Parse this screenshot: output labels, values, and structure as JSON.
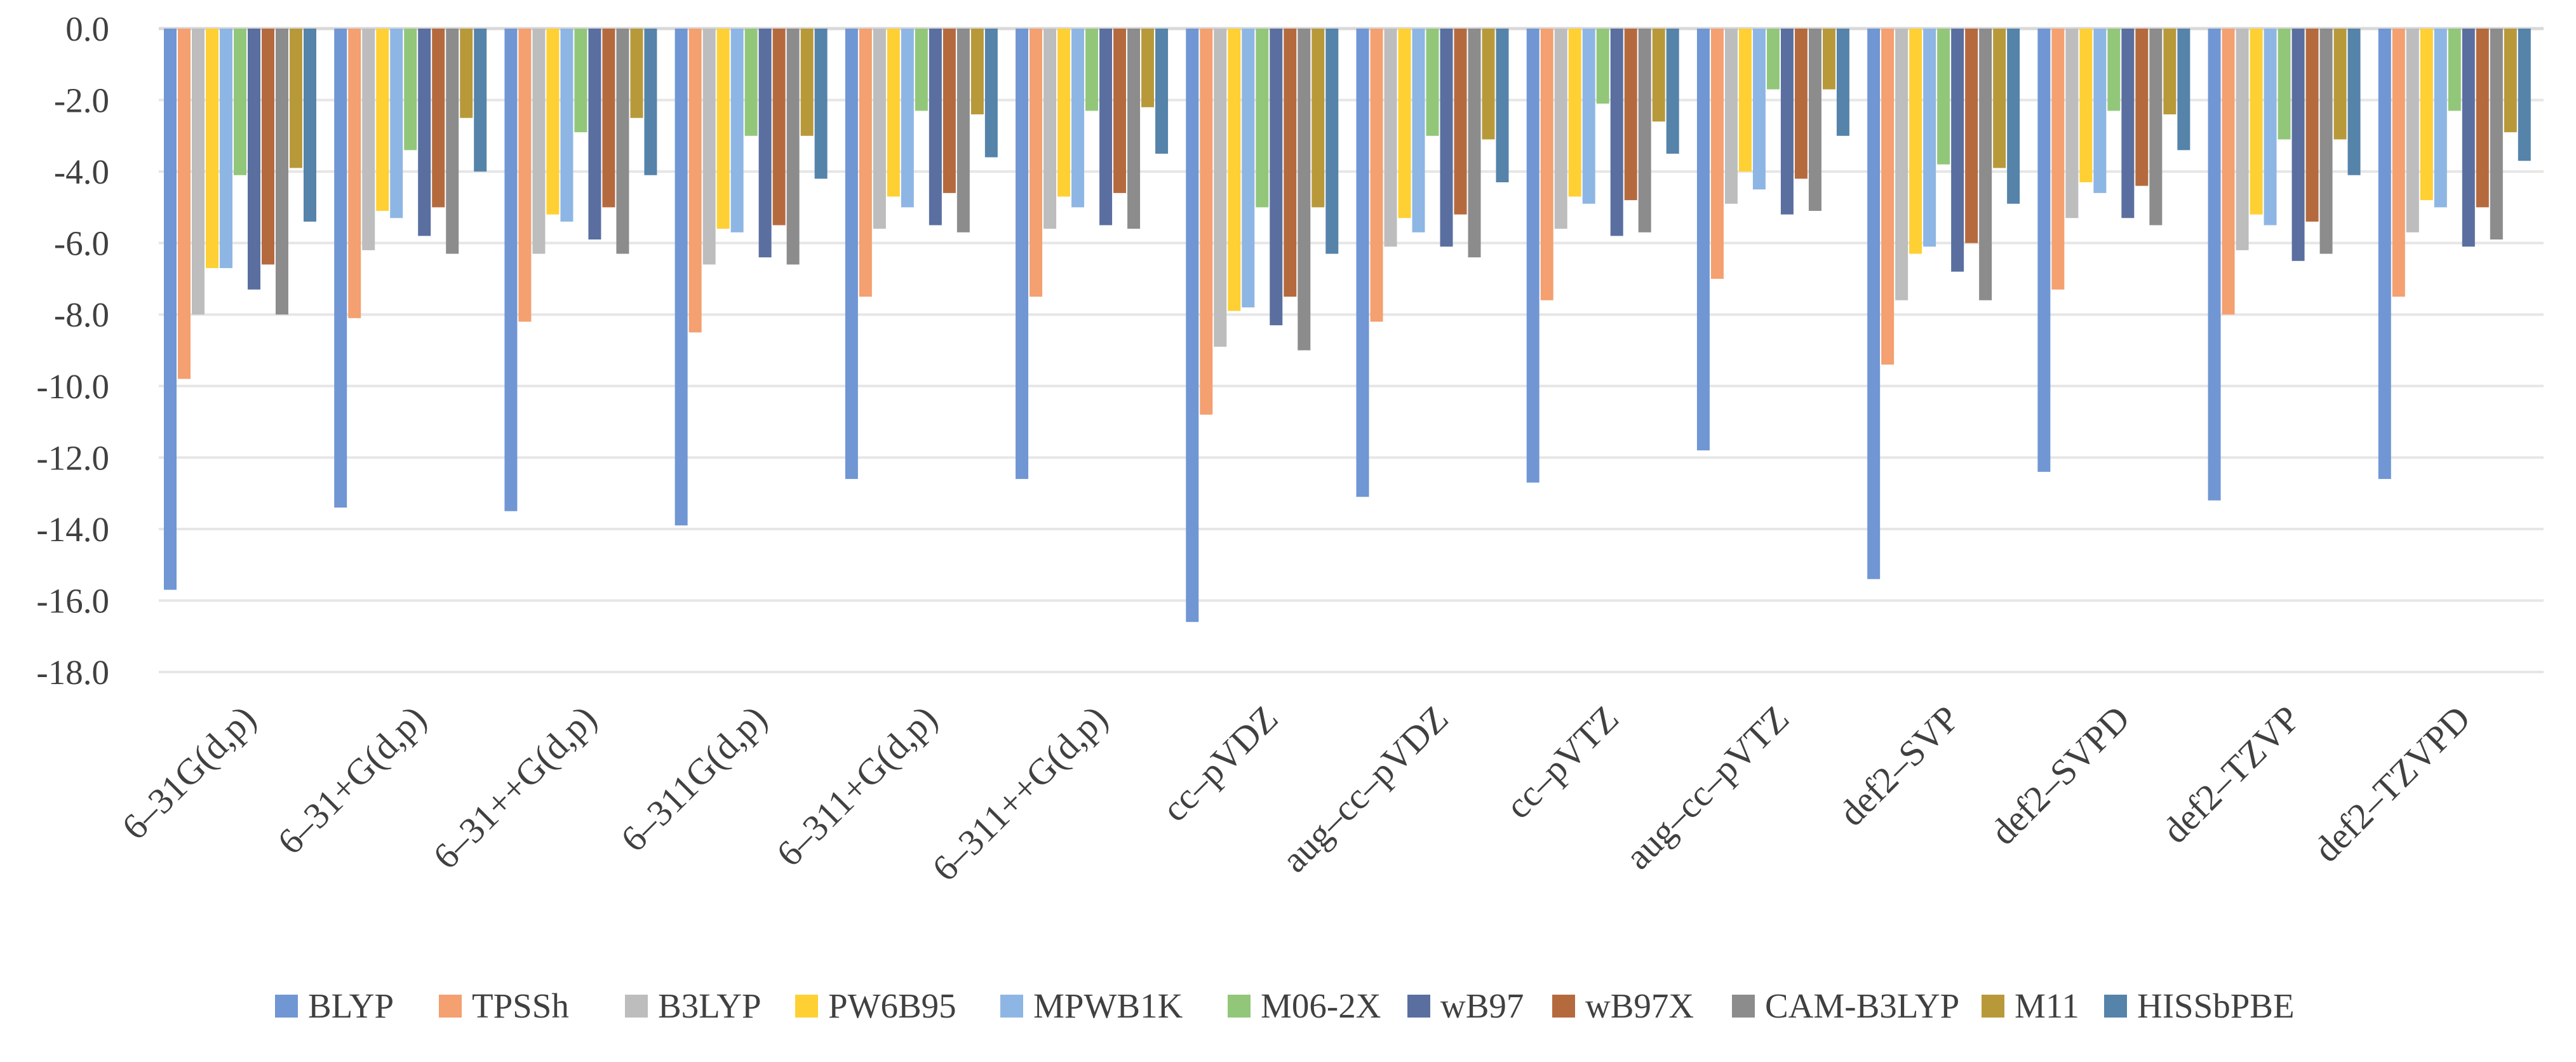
{
  "chart_data": {
    "type": "bar",
    "title": "",
    "xlabel": "",
    "ylabel": "",
    "ylim": [
      -18,
      0
    ],
    "yticks": [
      "0.0",
      "-2.0",
      "-4.0",
      "-6.0",
      "-8.0",
      "-10.0",
      "-12.0",
      "-14.0",
      "-16.0",
      "-18.0"
    ],
    "grid": true,
    "legend_position": "bottom",
    "categories": [
      "6–31G(d,p)",
      "6–31+G(d,p)",
      "6–31++G(d,p)",
      "6–311G(d,p)",
      "6–311+G(d,p)",
      "6–311++G(d,p)",
      "cc–pVDZ",
      "aug–cc–pVDZ",
      "cc–pVTZ",
      "aug–cc–pVTZ",
      "def2–SVP",
      "def2–SVPD",
      "def2–TZVP",
      "def2–TZVPD"
    ],
    "series": [
      {
        "name": "BLYP",
        "color": "#7096D4",
        "values": [
          -15.7,
          -13.4,
          -13.5,
          -13.9,
          -12.6,
          -12.6,
          -16.6,
          -13.1,
          -12.7,
          -11.8,
          -15.4,
          -12.4,
          -13.2,
          -12.6
        ]
      },
      {
        "name": "TPSSh",
        "color": "#F4A070",
        "values": [
          -9.8,
          -8.1,
          -8.2,
          -8.5,
          -7.5,
          -7.5,
          -10.8,
          -8.2,
          -7.6,
          -7.0,
          -9.4,
          -7.3,
          -8.0,
          -7.5
        ]
      },
      {
        "name": "B3LYP",
        "color": "#BDBDBD",
        "values": [
          -8.0,
          -6.2,
          -6.3,
          -6.6,
          -5.6,
          -5.6,
          -8.9,
          -6.1,
          -5.6,
          -4.9,
          -7.6,
          -5.3,
          -6.2,
          -5.7
        ]
      },
      {
        "name": "PW6B95",
        "color": "#FFD033",
        "values": [
          -6.7,
          -5.1,
          -5.2,
          -5.6,
          -4.7,
          -4.7,
          -7.9,
          -5.3,
          -4.7,
          -4.0,
          -6.3,
          -4.3,
          -5.2,
          -4.8
        ]
      },
      {
        "name": "MPWB1K",
        "color": "#8EB6E4",
        "values": [
          -6.7,
          -5.3,
          -5.4,
          -5.7,
          -5.0,
          -5.0,
          -7.8,
          -5.7,
          -4.9,
          -4.5,
          -6.1,
          -4.6,
          -5.5,
          -5.0
        ]
      },
      {
        "name": "M06-2X",
        "color": "#92C77A",
        "values": [
          -4.1,
          -3.4,
          -2.9,
          -3.0,
          -2.3,
          -2.3,
          -5.0,
          -3.0,
          -2.1,
          -1.7,
          -3.8,
          -2.3,
          -3.1,
          -2.3
        ]
      },
      {
        "name": "wB97",
        "color": "#5A6FA0",
        "values": [
          -7.3,
          -5.8,
          -5.9,
          -6.4,
          -5.5,
          -5.5,
          -8.3,
          -6.1,
          -5.8,
          -5.2,
          -6.8,
          -5.3,
          -6.5,
          -6.1
        ]
      },
      {
        "name": "wB97X",
        "color": "#B56A3E",
        "values": [
          -6.6,
          -5.0,
          -5.0,
          -5.5,
          -4.6,
          -4.6,
          -7.5,
          -5.2,
          -4.8,
          -4.2,
          -6.0,
          -4.4,
          -5.4,
          -5.0
        ]
      },
      {
        "name": "CAM-B3LYP",
        "color": "#8C8C8C",
        "values": [
          -8.0,
          -6.3,
          -6.3,
          -6.6,
          -5.7,
          -5.6,
          -9.0,
          -6.4,
          -5.7,
          -5.1,
          -7.6,
          -5.5,
          -6.3,
          -5.9
        ]
      },
      {
        "name": "M11",
        "color": "#B8993A",
        "values": [
          -3.9,
          -2.5,
          -2.5,
          -3.0,
          -2.4,
          -2.2,
          -5.0,
          -3.1,
          -2.6,
          -1.7,
          -3.9,
          -2.4,
          -3.1,
          -2.9
        ]
      },
      {
        "name": "HISSbPBE",
        "color": "#5583AA",
        "values": [
          -5.4,
          -4.0,
          -4.1,
          -4.2,
          -3.6,
          -3.5,
          -6.3,
          -4.3,
          -3.5,
          -3.0,
          -4.9,
          -3.4,
          -4.1,
          -3.7
        ]
      }
    ]
  }
}
